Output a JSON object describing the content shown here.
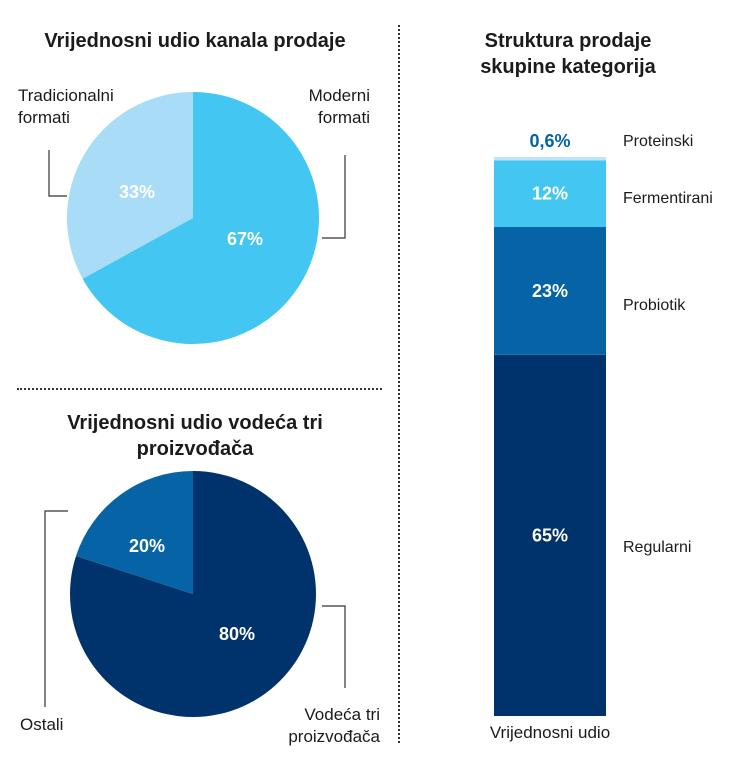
{
  "colors": {
    "light_blue": "#a9dcf7",
    "sky_blue": "#43c6f2",
    "mid_blue": "#0563a6",
    "navy": "#00336b",
    "pale_blue": "#bfe4f7"
  },
  "chart_data": [
    {
      "type": "pie",
      "title": "Vrijednosni udio kanala prodaje",
      "slices": [
        {
          "label": "Moderni formati",
          "value": 67,
          "value_label": "67%",
          "color": "#43c6f2"
        },
        {
          "label": "Tradicionalni formati",
          "value": 33,
          "value_label": "33%",
          "color": "#a9dcf7"
        }
      ]
    },
    {
      "type": "pie",
      "title": "Vrijednosni udio vodeća tri proizvođača",
      "slices": [
        {
          "label": "Vodeća tri proizvođača",
          "value": 80,
          "value_label": "80%",
          "color": "#00336b"
        },
        {
          "label": "Ostali",
          "value": 20,
          "value_label": "20%",
          "color": "#0563a6"
        }
      ]
    },
    {
      "type": "bar",
      "stacked": true,
      "title": "Struktura prodaje skupine kategorija",
      "categories": [
        "Vrijednosni udio"
      ],
      "series": [
        {
          "name": "Regularni",
          "values": [
            65
          ],
          "value_label": "65%",
          "color": "#00336b"
        },
        {
          "name": "Probiotik",
          "values": [
            23
          ],
          "value_label": "23%",
          "color": "#0563a6"
        },
        {
          "name": "Fermentirani",
          "values": [
            12
          ],
          "value_label": "12%",
          "color": "#43c6f2"
        },
        {
          "name": "Proteinski",
          "values": [
            0.6
          ],
          "value_label": "0,6%",
          "color": "#bfe4f7"
        }
      ]
    }
  ]
}
